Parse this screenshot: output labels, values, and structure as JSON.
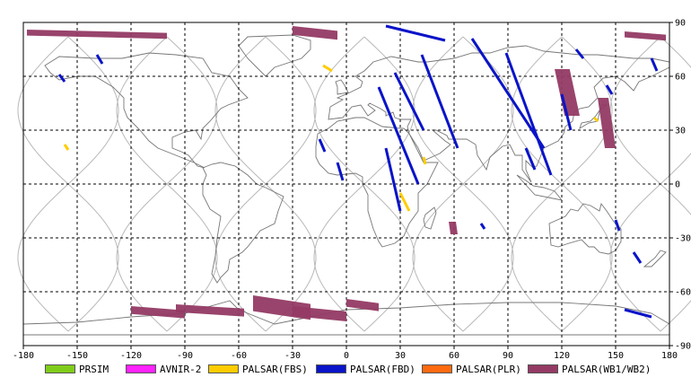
{
  "chart_data": {
    "type": "map",
    "title": "",
    "xlabel": "",
    "ylabel": "",
    "xlim": [
      -180,
      180
    ],
    "ylim": [
      -90,
      90
    ],
    "x_ticks": [
      "-180",
      "-150",
      "-120",
      "-90",
      "-60",
      "-30",
      "0",
      "30",
      "60",
      "90",
      "120",
      "150",
      "180"
    ],
    "y_ticks": [
      "90",
      "60",
      "30",
      "0",
      "-30",
      "-60",
      "-90"
    ],
    "grid": true,
    "legend_position": "bottom",
    "legend": [
      {
        "name": "PRSIM",
        "color": "#80cc1a"
      },
      {
        "name": "AVNIR-2",
        "color": "#ff22ff"
      },
      {
        "name": "PALSAR(FBS)",
        "color": "#ffcc00"
      },
      {
        "name": "PALSAR(FBD)",
        "color": "#0a14c8"
      },
      {
        "name": "PALSAR(PLR)",
        "color": "#ff6a10"
      },
      {
        "name": "PALSAR(WB1/WB2)",
        "color": "#943a64"
      }
    ],
    "wb_swaths": [
      {
        "lon": [
          -178,
          -100
        ],
        "lat": [
          86,
          80
        ]
      },
      {
        "lon": [
          -30,
          -5
        ],
        "lat": [
          88,
          79
        ]
      },
      {
        "lon": [
          155,
          178
        ],
        "lat": [
          85,
          79
        ]
      },
      {
        "lon": [
          116,
          130
        ],
        "lat": [
          64,
          38
        ]
      },
      {
        "lon": [
          140,
          150
        ],
        "lat": [
          48,
          20
        ]
      },
      {
        "lon": [
          57,
          62
        ],
        "lat": [
          -21,
          -28
        ]
      },
      {
        "lon": [
          -120,
          -90
        ],
        "lat": [
          -68,
          -76
        ]
      },
      {
        "lon": [
          -95,
          -57
        ],
        "lat": [
          -67,
          -75
        ]
      },
      {
        "lon": [
          -52,
          -20
        ],
        "lat": [
          -62,
          -78
        ]
      },
      {
        "lon": [
          -30,
          0
        ],
        "lat": [
          -68,
          -78
        ]
      },
      {
        "lon": [
          0,
          18
        ],
        "lat": [
          -64,
          -72
        ]
      }
    ],
    "fbd_tracks": [
      {
        "lon": [
          -139,
          -136
        ],
        "lat": [
          72,
          67
        ]
      },
      {
        "lon": [
          -160,
          -157
        ],
        "lat": [
          61,
          57
        ]
      },
      {
        "lon": [
          22,
          55
        ],
        "lat": [
          88,
          80
        ]
      },
      {
        "lon": [
          27,
          43
        ],
        "lat": [
          62,
          30
        ]
      },
      {
        "lon": [
          42,
          62
        ],
        "lat": [
          72,
          20
        ]
      },
      {
        "lon": [
          70,
          110
        ],
        "lat": [
          81,
          20
        ]
      },
      {
        "lon": [
          89,
          114
        ],
        "lat": [
          73,
          5
        ]
      },
      {
        "lon": [
          18,
          40
        ],
        "lat": [
          54,
          0
        ]
      },
      {
        "lon": [
          22,
          30
        ],
        "lat": [
          20,
          -15
        ]
      },
      {
        "lon": [
          -5,
          -2
        ],
        "lat": [
          12,
          2
        ]
      },
      {
        "lon": [
          -15,
          -12
        ],
        "lat": [
          25,
          18
        ]
      },
      {
        "lon": [
          120,
          125
        ],
        "lat": [
          50,
          30
        ]
      },
      {
        "lon": [
          100,
          105
        ],
        "lat": [
          20,
          8
        ]
      },
      {
        "lon": [
          75,
          77
        ],
        "lat": [
          -22,
          -25
        ]
      },
      {
        "lon": [
          150,
          152
        ],
        "lat": [
          -20,
          -26
        ]
      },
      {
        "lon": [
          170,
          173
        ],
        "lat": [
          70,
          63
        ]
      },
      {
        "lon": [
          128,
          132
        ],
        "lat": [
          75,
          70
        ]
      },
      {
        "lon": [
          155,
          170
        ],
        "lat": [
          -70,
          -74
        ]
      },
      {
        "lon": [
          160,
          164
        ],
        "lat": [
          -38,
          -44
        ]
      },
      {
        "lon": [
          145,
          148
        ],
        "lat": [
          55,
          50
        ]
      }
    ],
    "fbs_tracks": [
      {
        "lon": [
          -13,
          -8
        ],
        "lat": [
          66,
          63
        ]
      },
      {
        "lon": [
          30,
          35
        ],
        "lat": [
          -5,
          -15
        ]
      },
      {
        "lon": [
          -157,
          -155
        ],
        "lat": [
          22,
          19
        ]
      },
      {
        "lon": [
          138,
          140
        ],
        "lat": [
          37,
          35
        ]
      },
      {
        "lon": [
          43,
          44
        ],
        "lat": [
          15,
          11
        ]
      }
    ],
    "orbit_tracks_lon": [
      -155,
      -100,
      -45,
      10,
      65,
      120,
      175
    ]
  }
}
